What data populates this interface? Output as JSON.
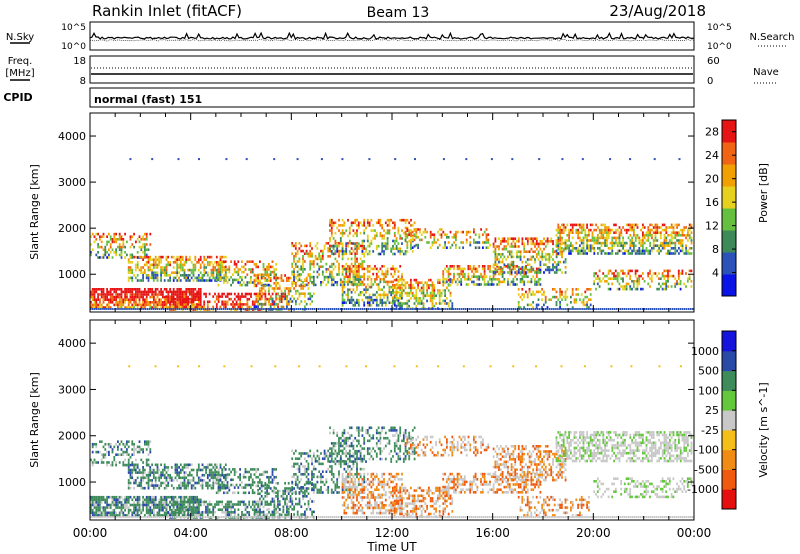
{
  "header": {
    "station": "Rankin Inlet (fitACF)",
    "beam": "Beam 13",
    "date": "23/Aug/2018"
  },
  "noise_panel": {
    "left_label": "N.Sky",
    "right_label": "N.Search",
    "left_ticks": [
      "10^5",
      "10^0"
    ],
    "right_ticks": [
      "10^5",
      "10^0"
    ]
  },
  "freq_panel": {
    "left_label_1": "Freq.",
    "left_label_2": "[MHz]",
    "right_label": "Nave",
    "left_ticks": [
      18,
      8
    ],
    "right_ticks": [
      60,
      0
    ]
  },
  "cpid": {
    "label": "CPID",
    "value": "normal (fast) 151"
  },
  "colors": {
    "power": [
      "#0a14e6",
      "#2a52b8",
      "#3d8a58",
      "#66c040",
      "#e6d21e",
      "#f0a000",
      "#f06414",
      "#e61414"
    ],
    "velocity": [
      "#e60f0f",
      "#f05a0f",
      "#f08c14",
      "#f5be19",
      "#c8c8c8",
      "#64c83c",
      "#3d8c5a",
      "#2a4aa8",
      "#1414dc"
    ]
  },
  "chart_data": [
    {
      "type": "heatmap",
      "name": "power",
      "x": [
        "00:00",
        "04:00",
        "08:00",
        "12:00",
        "16:00",
        "20:00",
        "00:00"
      ],
      "xlim": [
        0,
        24
      ],
      "ylim": [
        180,
        4500
      ],
      "yticks": [
        1000,
        2000,
        3000,
        4000
      ],
      "ylabel": "Slant Range [km]",
      "colorbar_label": "Power [dB]",
      "colorbar_ticks": [
        4,
        8,
        12,
        16,
        20,
        24,
        28
      ],
      "colorbar_range": [
        0,
        30
      ]
    },
    {
      "type": "heatmap",
      "name": "velocity",
      "x": [
        "00:00",
        "04:00",
        "08:00",
        "12:00",
        "16:00",
        "20:00",
        "00:00"
      ],
      "xlim": [
        0,
        24
      ],
      "ylim": [
        180,
        4500
      ],
      "yticks": [
        1000,
        2000,
        3000,
        4000
      ],
      "ylabel": "Slant Range [km]",
      "xlabel": "Time UT",
      "colorbar_label": "Velocity [m s^-1]",
      "colorbar_ticks": [
        "1000",
        "500",
        "100",
        "25",
        "-25",
        "-100",
        "-500",
        "-1000"
      ]
    }
  ]
}
